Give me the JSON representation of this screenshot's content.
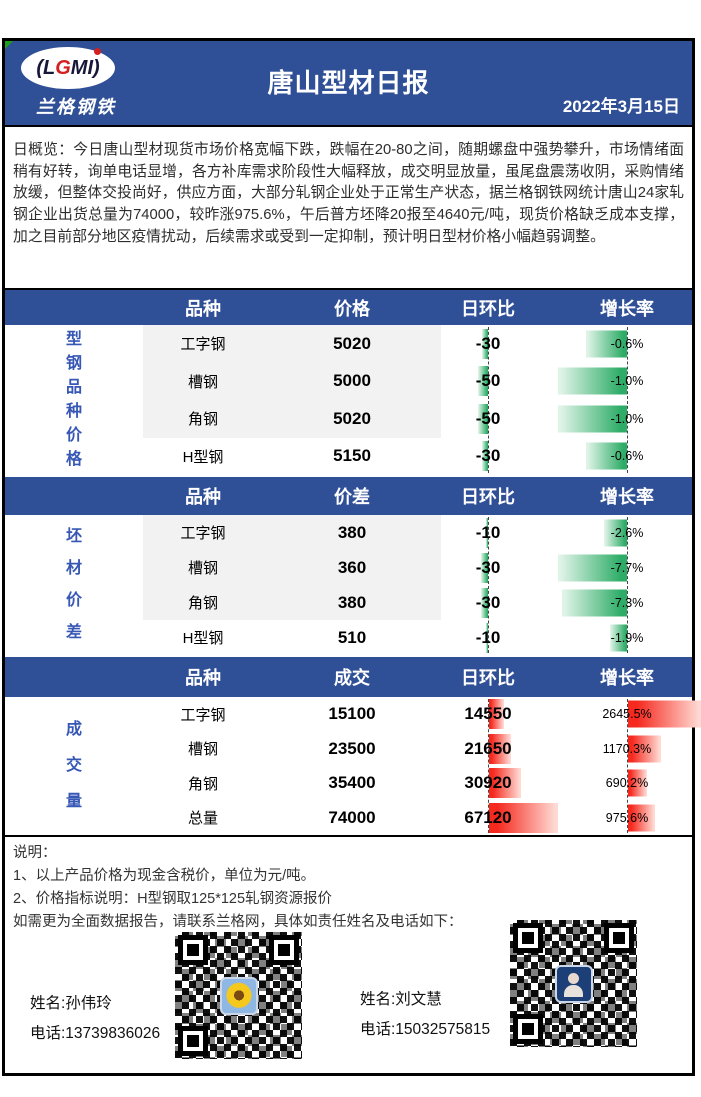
{
  "header": {
    "logo_part1": "(L",
    "logo_part2": "G",
    "logo_part3": "MI)",
    "logo_sub": "兰格钢铁",
    "title": "唐山型材日报",
    "date": "2022年3月15日"
  },
  "summary": "日概览：今日唐山型材现货市场价格宽幅下跌，跌幅在20-80之间，随期螺盘中强势攀升，市场情绪面稍有好转，询单电话显增，各方补库需求阶段性大幅释放，成交明显放量，虽尾盘震荡收阴，采购情绪放缓，但整体交投尚好，供应方面，大部分轧钢企业处于正常生产状态，据兰格钢铁网统计唐山24家轧钢企业出货总量为74000，较昨涨975.6%，午后普方坯降20报至4640元/吨，现货价格缺乏成本支撑，加之目前部分地区疫情扰动，后续需求或受到一定抑制，预计明日型材价格小幅趋弱调整。",
  "tables": [
    {
      "section_label": "型钢品种价格",
      "columns": [
        "品种",
        "价格",
        "日环比",
        "增长率"
      ],
      "rows": [
        {
          "name": "工字钢",
          "value": "5020",
          "dod": "-30",
          "growth": "-0.6%"
        },
        {
          "name": "槽钢",
          "value": "5000",
          "dod": "-50",
          "growth": "-1.0%"
        },
        {
          "name": "角钢",
          "value": "5020",
          "dod": "-50",
          "growth": "-1.0%"
        },
        {
          "name": "H型钢",
          "value": "5150",
          "dod": "-30",
          "growth": "-0.6%"
        }
      ]
    },
    {
      "section_label": "坯材价差",
      "columns": [
        "品种",
        "价差",
        "日环比",
        "增长率"
      ],
      "rows": [
        {
          "name": "工字钢",
          "value": "380",
          "dod": "-10",
          "growth": "-2.6%"
        },
        {
          "name": "槽钢",
          "value": "360",
          "dod": "-30",
          "growth": "-7.7%"
        },
        {
          "name": "角钢",
          "value": "380",
          "dod": "-30",
          "growth": "-7.3%"
        },
        {
          "name": "H型钢",
          "value": "510",
          "dod": "-10",
          "growth": "-1.9%"
        }
      ]
    },
    {
      "section_label": "成交量",
      "columns": [
        "品种",
        "成交",
        "日环比",
        "增长率"
      ],
      "rows": [
        {
          "name": "工字钢",
          "value": "15100",
          "dod": "14550",
          "growth": "2645.5%"
        },
        {
          "name": "槽钢",
          "value": "23500",
          "dod": "21650",
          "growth": "1170.3%"
        },
        {
          "name": "角钢",
          "value": "35400",
          "dod": "30920",
          "growth": "690.2%"
        },
        {
          "name": "总量",
          "value": "74000",
          "dod": "67120",
          "growth": "975.6%"
        }
      ]
    }
  ],
  "notes": {
    "title": "说明：",
    "line1": "1、以上产品价格为现金含税价，单位为元/吨。",
    "line2": "2、价格指标说明：H型钢取125*125轧钢资源报价",
    "line3": "如需更为全面数据报告，请联系兰格网，具体如责任姓名及电话如下："
  },
  "contacts": [
    {
      "name": "姓名:孙伟玲",
      "phone": "电话:13739836026"
    },
    {
      "name": "姓名:刘文慧",
      "phone": "电话:15032575815"
    }
  ],
  "colors": {
    "header_blue": "#2F4F96",
    "label_blue": "#3757B5",
    "bar_green": "#2CAC66",
    "bar_red": "#F5291E"
  }
}
